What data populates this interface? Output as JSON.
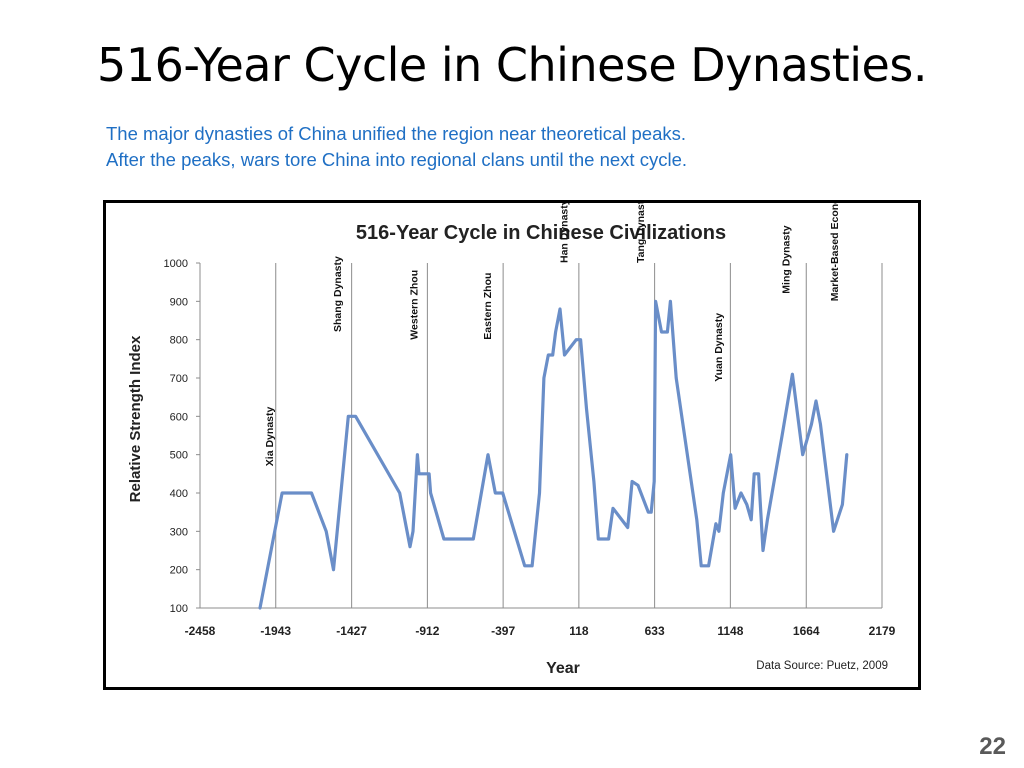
{
  "slide": {
    "title": "516-Year Cycle in Chinese Dynasties.",
    "subtitle_lines": [
      "The major dynasties of China unified the region near theoretical peaks.",
      "After the peaks, wars tore China into regional clans until the next cycle."
    ],
    "page_number": "22"
  },
  "chart_data": {
    "type": "line",
    "title": "516-Year Cycle in Chinese Civilizations",
    "xlabel": "Year",
    "ylabel": "Relative Strength Index",
    "source": "Data Source:  Puetz, 2009",
    "xlim": [
      -2458,
      2179
    ],
    "ylim": [
      100,
      1000
    ],
    "x_ticks": [
      -2458,
      -1943,
      -1427,
      -912,
      -397,
      118,
      633,
      1148,
      1664,
      2179
    ],
    "y_ticks": [
      100,
      200,
      300,
      400,
      500,
      600,
      700,
      800,
      900,
      1000
    ],
    "grid": "vertical",
    "line_color": "#6a8ec8",
    "series": [
      {
        "points": [
          [
            -2050,
            100
          ],
          [
            -1900,
            400
          ],
          [
            -1700,
            400
          ],
          [
            -1600,
            300
          ],
          [
            -1550,
            200
          ],
          [
            -1450,
            600
          ],
          [
            -1400,
            600
          ],
          [
            -1100,
            400
          ],
          [
            -1030,
            260
          ],
          [
            -1010,
            300
          ],
          [
            -980,
            500
          ],
          [
            -970,
            450
          ],
          [
            -900,
            450
          ],
          [
            -890,
            400
          ],
          [
            -800,
            280
          ],
          [
            -600,
            280
          ],
          [
            -500,
            500
          ],
          [
            -450,
            400
          ],
          [
            -400,
            400
          ],
          [
            -250,
            210
          ],
          [
            -200,
            210
          ],
          [
            -150,
            400
          ],
          [
            -120,
            700
          ],
          [
            -90,
            760
          ],
          [
            -60,
            760
          ],
          [
            -40,
            820
          ],
          [
            -10,
            880
          ],
          [
            20,
            760
          ],
          [
            100,
            800
          ],
          [
            130,
            800
          ],
          [
            170,
            620
          ],
          [
            220,
            430
          ],
          [
            250,
            280
          ],
          [
            320,
            280
          ],
          [
            350,
            360
          ],
          [
            450,
            310
          ],
          [
            480,
            430
          ],
          [
            520,
            420
          ],
          [
            590,
            350
          ],
          [
            610,
            350
          ],
          [
            630,
            430
          ],
          [
            640,
            900
          ],
          [
            680,
            820
          ],
          [
            720,
            820
          ],
          [
            740,
            900
          ],
          [
            780,
            700
          ],
          [
            920,
            330
          ],
          [
            950,
            210
          ],
          [
            1000,
            210
          ],
          [
            1050,
            320
          ],
          [
            1070,
            300
          ],
          [
            1100,
            400
          ],
          [
            1150,
            500
          ],
          [
            1180,
            360
          ],
          [
            1220,
            400
          ],
          [
            1260,
            370
          ],
          [
            1290,
            330
          ],
          [
            1310,
            450
          ],
          [
            1340,
            450
          ],
          [
            1370,
            250
          ],
          [
            1400,
            330
          ],
          [
            1500,
            550
          ],
          [
            1570,
            710
          ],
          [
            1640,
            500
          ],
          [
            1700,
            580
          ],
          [
            1730,
            640
          ],
          [
            1760,
            580
          ],
          [
            1850,
            300
          ],
          [
            1910,
            370
          ],
          [
            1940,
            500
          ]
        ]
      }
    ],
    "annotations": [
      {
        "text": "Xia Dynasty",
        "x": -1960,
        "y": 470
      },
      {
        "text": "Shang Dynasty",
        "x": -1500,
        "y": 820
      },
      {
        "text": "Western Zhou",
        "x": -980,
        "y": 800
      },
      {
        "text": "Eastern Zhou",
        "x": -480,
        "y": 800
      },
      {
        "text": "Han Dynasty",
        "x": 40,
        "y": 1000
      },
      {
        "text": "Tang Dynasty",
        "x": 560,
        "y": 1000
      },
      {
        "text": "Yuan Dynasty",
        "x": 1090,
        "y": 690
      },
      {
        "text": "Ming Dynasty",
        "x": 1550,
        "y": 920
      },
      {
        "text": "Market-Based Economy",
        "x": 1880,
        "y": 900
      }
    ]
  }
}
